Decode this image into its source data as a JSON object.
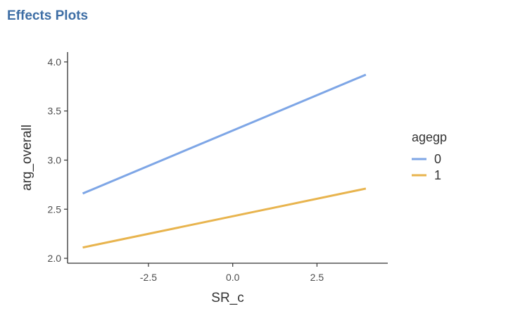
{
  "panel": {
    "title": "Effects Plots"
  },
  "colors": {
    "title": "#3e6ea5",
    "series_0": "#7ea6e6",
    "series_1": "#e8b44e",
    "axis": "#333333"
  },
  "chart_data": {
    "type": "line",
    "title": "",
    "xlabel": "SR_c",
    "ylabel": "arg_overall",
    "xlim": [
      -4.9,
      4.6
    ],
    "ylim": [
      1.95,
      4.1
    ],
    "x_ticks": [
      -2.5,
      0.0,
      2.5
    ],
    "x_tick_labels": [
      "-2.5",
      "0.0",
      "2.5"
    ],
    "y_ticks": [
      2.0,
      2.5,
      3.0,
      3.5,
      4.0
    ],
    "y_tick_labels": [
      "2.0",
      "2.5",
      "3.0",
      "3.5",
      "4.0"
    ],
    "grid": false,
    "legend": {
      "title": "agegp",
      "placement": "right"
    },
    "series": [
      {
        "name": "0",
        "color": "#7ea6e6",
        "x": [
          -4.45,
          3.95
        ],
        "y": [
          2.66,
          3.87
        ]
      },
      {
        "name": "1",
        "color": "#e8b44e",
        "x": [
          -4.45,
          3.95
        ],
        "y": [
          2.11,
          2.71
        ]
      }
    ]
  }
}
